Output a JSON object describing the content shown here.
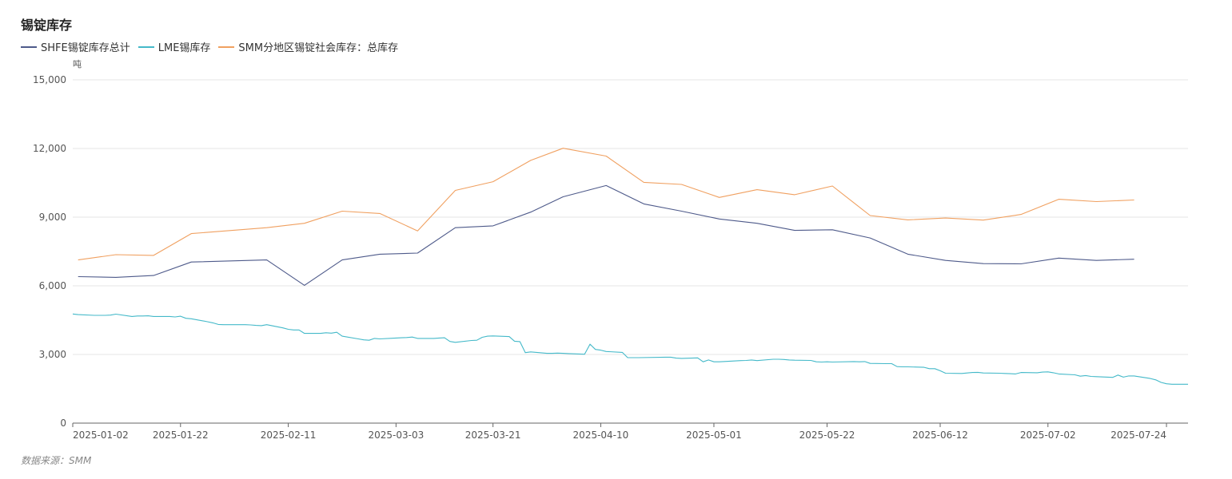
{
  "title": "锡锭库存",
  "source": "数据来源：SMM",
  "chart_data": {
    "type": "line",
    "title": "锡锭库存",
    "ylabel": "吨",
    "ylim": [
      0,
      15000
    ],
    "yticks": [
      "0",
      "3,000",
      "6,000",
      "9,000",
      "12,000",
      "15,000"
    ],
    "x_ticks": [
      "2025-01-02",
      "2025-01-22",
      "2025-02-11",
      "2025-03-03",
      "2025-03-21",
      "2025-04-10",
      "2025-05-01",
      "2025-05-22",
      "2025-06-12",
      "2025-07-02",
      "2025-07-24"
    ],
    "legend_position": "top-left",
    "grid": true,
    "series": [
      {
        "name": "SHFE锡锭库存总计",
        "color": "#4e5a8a",
        "points": [
          [
            "2025-01-03",
            6400
          ],
          [
            "2025-01-10",
            6370
          ],
          [
            "2025-01-17",
            6450
          ],
          [
            "2025-01-24",
            7040
          ],
          [
            "2025-02-07",
            7130
          ],
          [
            "2025-02-14",
            6020
          ],
          [
            "2025-02-21",
            7130
          ],
          [
            "2025-02-28",
            7380
          ],
          [
            "2025-03-07",
            7430
          ],
          [
            "2025-03-14",
            8540
          ],
          [
            "2025-03-21",
            8620
          ],
          [
            "2025-03-28",
            9220
          ],
          [
            "2025-04-03",
            9890
          ],
          [
            "2025-04-11",
            10380
          ],
          [
            "2025-04-18",
            9580
          ],
          [
            "2025-04-25",
            9260
          ],
          [
            "2025-05-02",
            8920
          ],
          [
            "2025-05-09",
            8730
          ],
          [
            "2025-05-16",
            8420
          ],
          [
            "2025-05-23",
            8450
          ],
          [
            "2025-05-30",
            8090
          ],
          [
            "2025-06-06",
            7380
          ],
          [
            "2025-06-13",
            7110
          ],
          [
            "2025-06-20",
            6970
          ],
          [
            "2025-06-27",
            6960
          ],
          [
            "2025-07-04",
            7210
          ],
          [
            "2025-07-11",
            7110
          ],
          [
            "2025-07-18",
            7160
          ]
        ]
      },
      {
        "name": "LME锡库存",
        "color": "#44b9c9",
        "points": [
          [
            "2025-01-02",
            4770
          ],
          [
            "2025-01-03",
            4740
          ],
          [
            "2025-01-06",
            4710
          ],
          [
            "2025-01-07",
            4710
          ],
          [
            "2025-01-08",
            4710
          ],
          [
            "2025-01-09",
            4720
          ],
          [
            "2025-01-10",
            4760
          ],
          [
            "2025-01-13",
            4660
          ],
          [
            "2025-01-14",
            4680
          ],
          [
            "2025-01-15",
            4680
          ],
          [
            "2025-01-16",
            4690
          ],
          [
            "2025-01-17",
            4660
          ],
          [
            "2025-01-20",
            4660
          ],
          [
            "2025-01-21",
            4640
          ],
          [
            "2025-01-22",
            4670
          ],
          [
            "2025-01-23",
            4580
          ],
          [
            "2025-01-24",
            4560
          ],
          [
            "2025-01-27",
            4430
          ],
          [
            "2025-01-28",
            4380
          ],
          [
            "2025-01-29",
            4310
          ],
          [
            "2025-01-30",
            4300
          ],
          [
            "2025-01-31",
            4300
          ],
          [
            "2025-02-03",
            4300
          ],
          [
            "2025-02-04",
            4290
          ],
          [
            "2025-02-05",
            4270
          ],
          [
            "2025-02-06",
            4260
          ],
          [
            "2025-02-07",
            4300
          ],
          [
            "2025-02-10",
            4160
          ],
          [
            "2025-02-11",
            4100
          ],
          [
            "2025-02-12",
            4070
          ],
          [
            "2025-02-13",
            4070
          ],
          [
            "2025-02-14",
            3920
          ],
          [
            "2025-02-17",
            3920
          ],
          [
            "2025-02-18",
            3950
          ],
          [
            "2025-02-19",
            3930
          ],
          [
            "2025-02-20",
            3970
          ],
          [
            "2025-02-21",
            3800
          ],
          [
            "2025-02-24",
            3680
          ],
          [
            "2025-02-25",
            3640
          ],
          [
            "2025-02-26",
            3620
          ],
          [
            "2025-02-27",
            3700
          ],
          [
            "2025-02-28",
            3680
          ],
          [
            "2025-03-03",
            3720
          ],
          [
            "2025-03-04",
            3730
          ],
          [
            "2025-03-05",
            3740
          ],
          [
            "2025-03-06",
            3760
          ],
          [
            "2025-03-07",
            3700
          ],
          [
            "2025-03-10",
            3700
          ],
          [
            "2025-03-11",
            3720
          ],
          [
            "2025-03-12",
            3730
          ],
          [
            "2025-03-13",
            3570
          ],
          [
            "2025-03-14",
            3530
          ],
          [
            "2025-03-17",
            3610
          ],
          [
            "2025-03-18",
            3620
          ],
          [
            "2025-03-19",
            3750
          ],
          [
            "2025-03-20",
            3800
          ],
          [
            "2025-03-21",
            3810
          ],
          [
            "2025-03-24",
            3780
          ],
          [
            "2025-03-25",
            3580
          ],
          [
            "2025-03-26",
            3560
          ],
          [
            "2025-03-27",
            3080
          ],
          [
            "2025-03-28",
            3110
          ],
          [
            "2025-03-31",
            3050
          ],
          [
            "2025-04-01",
            3050
          ],
          [
            "2025-04-02",
            3060
          ],
          [
            "2025-04-03",
            3050
          ],
          [
            "2025-04-04",
            3040
          ],
          [
            "2025-04-07",
            3010
          ],
          [
            "2025-04-08",
            3450
          ],
          [
            "2025-04-09",
            3220
          ],
          [
            "2025-04-10",
            3190
          ],
          [
            "2025-04-11",
            3130
          ],
          [
            "2025-04-14",
            3090
          ],
          [
            "2025-04-15",
            2860
          ],
          [
            "2025-04-16",
            2860
          ],
          [
            "2025-04-17",
            2860
          ],
          [
            "2025-04-22",
            2880
          ],
          [
            "2025-04-23",
            2880
          ],
          [
            "2025-04-24",
            2840
          ],
          [
            "2025-04-25",
            2830
          ],
          [
            "2025-04-28",
            2850
          ],
          [
            "2025-04-29",
            2680
          ],
          [
            "2025-04-30",
            2760
          ],
          [
            "2025-05-01",
            2680
          ],
          [
            "2025-05-02",
            2680
          ],
          [
            "2025-05-06",
            2730
          ],
          [
            "2025-05-07",
            2740
          ],
          [
            "2025-05-08",
            2760
          ],
          [
            "2025-05-09",
            2730
          ],
          [
            "2025-05-12",
            2790
          ],
          [
            "2025-05-13",
            2790
          ],
          [
            "2025-05-14",
            2780
          ],
          [
            "2025-05-15",
            2760
          ],
          [
            "2025-05-16",
            2750
          ],
          [
            "2025-05-19",
            2740
          ],
          [
            "2025-05-20",
            2680
          ],
          [
            "2025-05-21",
            2670
          ],
          [
            "2025-05-22",
            2680
          ],
          [
            "2025-05-23",
            2670
          ],
          [
            "2025-05-27",
            2690
          ],
          [
            "2025-05-28",
            2680
          ],
          [
            "2025-05-29",
            2690
          ],
          [
            "2025-05-30",
            2610
          ],
          [
            "2025-06-02",
            2600
          ],
          [
            "2025-06-03",
            2600
          ],
          [
            "2025-06-04",
            2470
          ],
          [
            "2025-06-05",
            2460
          ],
          [
            "2025-06-06",
            2460
          ],
          [
            "2025-06-09",
            2440
          ],
          [
            "2025-06-10",
            2380
          ],
          [
            "2025-06-11",
            2380
          ],
          [
            "2025-06-12",
            2290
          ],
          [
            "2025-06-13",
            2180
          ],
          [
            "2025-06-16",
            2170
          ],
          [
            "2025-06-17",
            2190
          ],
          [
            "2025-06-18",
            2210
          ],
          [
            "2025-06-19",
            2220
          ],
          [
            "2025-06-20",
            2190
          ],
          [
            "2025-06-23",
            2180
          ],
          [
            "2025-06-24",
            2170
          ],
          [
            "2025-06-25",
            2160
          ],
          [
            "2025-06-26",
            2150
          ],
          [
            "2025-06-27",
            2210
          ],
          [
            "2025-06-30",
            2200
          ],
          [
            "2025-07-01",
            2230
          ],
          [
            "2025-07-02",
            2240
          ],
          [
            "2025-07-03",
            2200
          ],
          [
            "2025-07-04",
            2150
          ],
          [
            "2025-07-07",
            2110
          ],
          [
            "2025-07-08",
            2050
          ],
          [
            "2025-07-09",
            2080
          ],
          [
            "2025-07-10",
            2040
          ],
          [
            "2025-07-11",
            2030
          ],
          [
            "2025-07-14",
            2000
          ],
          [
            "2025-07-15",
            2100
          ],
          [
            "2025-07-16",
            2010
          ],
          [
            "2025-07-17",
            2060
          ],
          [
            "2025-07-18",
            2060
          ],
          [
            "2025-07-21",
            1950
          ],
          [
            "2025-07-22",
            1890
          ],
          [
            "2025-07-23",
            1780
          ],
          [
            "2025-07-24",
            1720
          ],
          [
            "2025-07-25",
            1700
          ],
          [
            "2025-07-28",
            1700
          ]
        ]
      },
      {
        "name": "SMM分地区锡锭社会库存：总库存",
        "color": "#f0a060",
        "points": [
          [
            "2025-01-03",
            7130
          ],
          [
            "2025-01-10",
            7360
          ],
          [
            "2025-01-17",
            7330
          ],
          [
            "2025-01-24",
            8280
          ],
          [
            "2025-02-07",
            8540
          ],
          [
            "2025-02-14",
            8730
          ],
          [
            "2025-02-21",
            9260
          ],
          [
            "2025-02-28",
            9160
          ],
          [
            "2025-03-07",
            8400
          ],
          [
            "2025-03-14",
            10170
          ],
          [
            "2025-03-21",
            10550
          ],
          [
            "2025-03-28",
            11480
          ],
          [
            "2025-04-03",
            12010
          ],
          [
            "2025-04-11",
            11670
          ],
          [
            "2025-04-18",
            10520
          ],
          [
            "2025-04-25",
            10430
          ],
          [
            "2025-05-02",
            9860
          ],
          [
            "2025-05-09",
            10200
          ],
          [
            "2025-05-16",
            9980
          ],
          [
            "2025-05-23",
            10360
          ],
          [
            "2025-05-30",
            9070
          ],
          [
            "2025-06-06",
            8880
          ],
          [
            "2025-06-13",
            8960
          ],
          [
            "2025-06-20",
            8870
          ],
          [
            "2025-06-27",
            9120
          ],
          [
            "2025-07-04",
            9780
          ],
          [
            "2025-07-11",
            9680
          ],
          [
            "2025-07-18",
            9750
          ]
        ]
      }
    ]
  }
}
